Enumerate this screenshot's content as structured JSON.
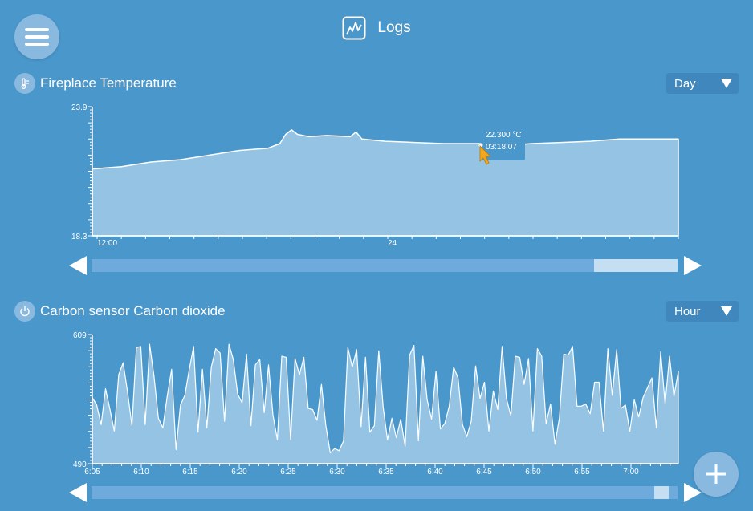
{
  "header": {
    "title": "Logs",
    "logo_icon": "chart-line-icon"
  },
  "menu": {
    "icon": "hamburger-menu-icon"
  },
  "temperature": {
    "title": "Fireplace Temperature",
    "icon": "thermometer-icon",
    "range_select": {
      "value": "Day",
      "options": [
        "Day"
      ]
    },
    "tooltip": {
      "value": "22.300 °C",
      "time": "03:18:07"
    },
    "scroll_thumb": {
      "start": 0.857,
      "end": 1.0
    }
  },
  "co2": {
    "title": "Carbon sensor Carbon dioxide",
    "icon": "power-icon",
    "range_select": {
      "value": "Hour",
      "options": [
        "Hour"
      ]
    },
    "scroll_thumb": {
      "start": 0.96,
      "end": 0.985
    }
  },
  "fab": {
    "icon": "plus-icon"
  },
  "chart_data": [
    {
      "type": "area",
      "title": "Fireplace Temperature",
      "ylim": [
        18.3,
        23.9
      ],
      "y_tick_labels": [
        "23.9",
        "18.3"
      ],
      "x_tick_labels": [
        {
          "label": "12:00",
          "pos": 0.0
        },
        {
          "label": "24",
          "pos": 0.5
        }
      ],
      "points": [
        [
          0.0,
          21.2
        ],
        [
          0.05,
          21.3
        ],
        [
          0.1,
          21.5
        ],
        [
          0.15,
          21.6
        ],
        [
          0.2,
          21.8
        ],
        [
          0.25,
          22.0
        ],
        [
          0.3,
          22.1
        ],
        [
          0.32,
          22.3
        ],
        [
          0.33,
          22.7
        ],
        [
          0.34,
          22.9
        ],
        [
          0.35,
          22.7
        ],
        [
          0.37,
          22.6
        ],
        [
          0.4,
          22.65
        ],
        [
          0.44,
          22.6
        ],
        [
          0.45,
          22.8
        ],
        [
          0.46,
          22.5
        ],
        [
          0.5,
          22.4
        ],
        [
          0.55,
          22.35
        ],
        [
          0.6,
          22.3
        ],
        [
          0.66,
          22.3
        ],
        [
          0.7,
          22.2
        ],
        [
          0.75,
          22.3
        ],
        [
          0.8,
          22.35
        ],
        [
          0.85,
          22.4
        ],
        [
          0.9,
          22.5
        ],
        [
          0.96,
          22.5
        ],
        [
          1.0,
          22.5
        ]
      ]
    },
    {
      "type": "area",
      "title": "Carbon sensor Carbon dioxide",
      "ylim": [
        490,
        609
      ],
      "y_tick_labels": [
        "609",
        "490"
      ],
      "x_tick_labels": [
        "6:05",
        "6:10",
        "6:15",
        "6:20",
        "6:25",
        "6:30",
        "6:35",
        "6:40",
        "6:45",
        "6:50",
        "6:55",
        "7:00"
      ],
      "values": [
        551,
        544,
        526,
        559,
        540,
        520,
        572,
        583,
        556,
        525,
        597,
        598,
        526,
        600,
        571,
        532,
        523,
        552,
        577,
        503,
        544,
        553,
        577,
        598,
        519,
        577,
        523,
        579,
        596,
        592,
        529,
        600,
        586,
        554,
        546,
        591,
        525,
        581,
        586,
        537,
        581,
        535,
        512,
        589,
        588,
        512,
        587,
        572,
        588,
        541,
        540,
        530,
        563,
        525,
        500,
        504,
        502,
        511,
        597,
        579,
        595,
        524,
        588,
        519,
        525,
        594,
        542,
        512,
        532,
        514,
        531,
        506,
        590,
        599,
        511,
        589,
        549,
        531,
        575,
        522,
        527,
        543,
        579,
        569,
        526,
        515,
        529,
        580,
        550,
        565,
        520,
        557,
        540,
        598,
        550,
        534,
        589,
        588,
        563,
        587,
        520,
        596,
        589,
        527,
        545,
        508,
        532,
        591,
        590,
        598,
        543,
        543,
        545,
        536,
        565,
        565,
        520,
        596,
        553,
        595,
        541,
        544,
        520,
        549,
        533,
        551,
        560,
        569,
        523,
        593,
        545,
        589,
        552,
        575
      ]
    }
  ]
}
